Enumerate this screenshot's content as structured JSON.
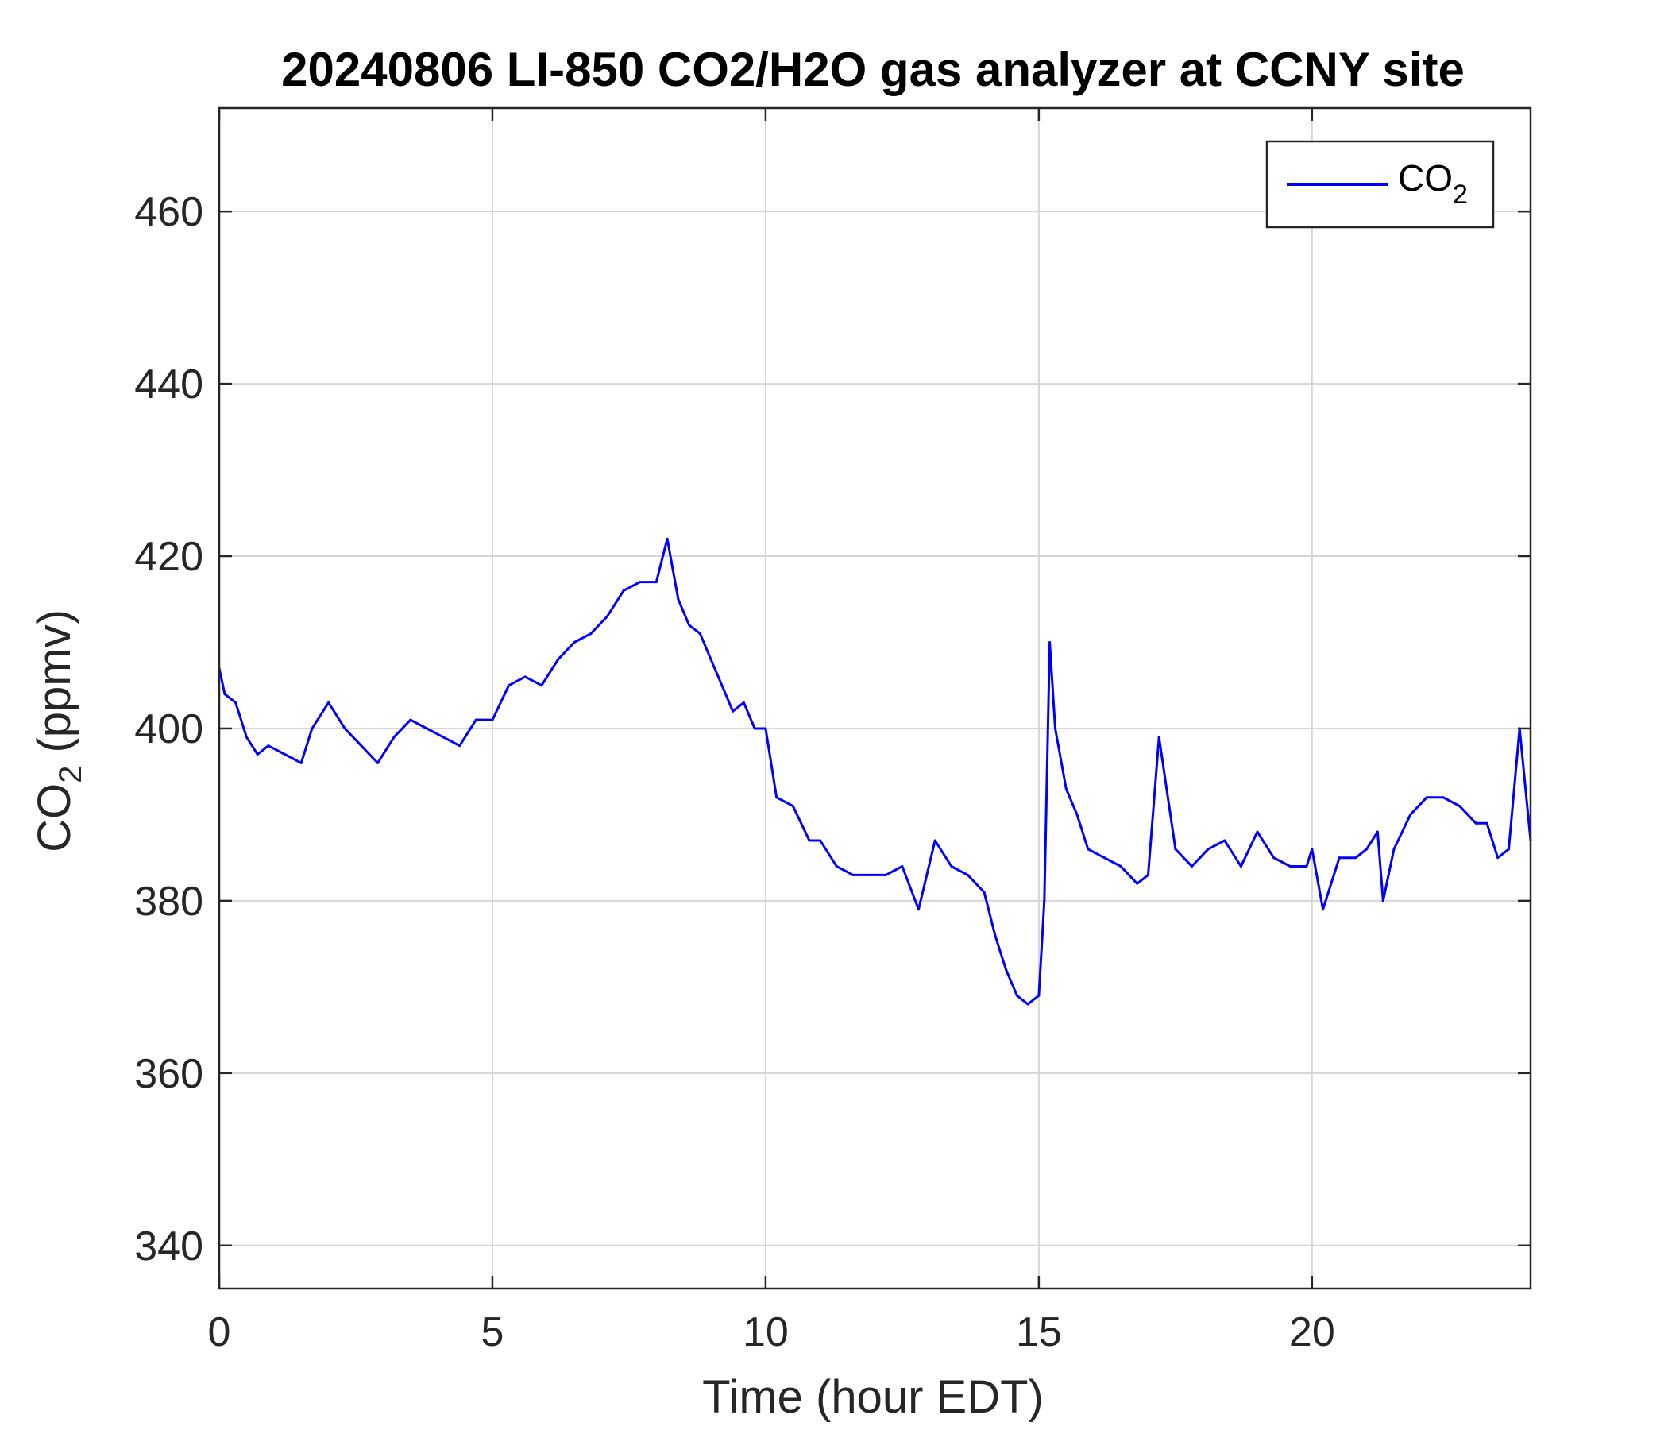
{
  "chart_data": {
    "type": "line",
    "title": "20240806 LI-850 CO2/H2O gas analyzer at CCNY site",
    "xlabel": "Time (hour EDT)",
    "ylabel": {
      "base": "CO",
      "sub": "2",
      "rest": " (ppmv)"
    },
    "xlim": [
      0,
      24
    ],
    "ylim": [
      335,
      472
    ],
    "xticks": [
      0,
      5,
      10,
      15,
      20
    ],
    "yticks": [
      340,
      360,
      380,
      400,
      420,
      440,
      460
    ],
    "grid": true,
    "legend": {
      "position": "top-right",
      "label_base": "CO",
      "label_sub": "2"
    },
    "series": [
      {
        "name": "CO2",
        "color": "#0000ff",
        "x": [
          0,
          0.1,
          0.3,
          0.5,
          0.7,
          0.9,
          1.2,
          1.5,
          1.7,
          2.0,
          2.3,
          2.6,
          2.9,
          3.2,
          3.5,
          3.8,
          4.1,
          4.4,
          4.7,
          5.0,
          5.3,
          5.6,
          5.9,
          6.2,
          6.5,
          6.8,
          7.1,
          7.4,
          7.7,
          8.0,
          8.2,
          8.4,
          8.6,
          8.8,
          9.0,
          9.2,
          9.4,
          9.6,
          9.8,
          10.0,
          10.2,
          10.5,
          10.8,
          11.0,
          11.3,
          11.6,
          11.9,
          12.2,
          12.5,
          12.8,
          13.1,
          13.4,
          13.7,
          14.0,
          14.2,
          14.4,
          14.6,
          14.8,
          15.0,
          15.1,
          15.2,
          15.3,
          15.5,
          15.7,
          15.9,
          16.2,
          16.5,
          16.8,
          17.0,
          17.2,
          17.5,
          17.8,
          18.1,
          18.4,
          18.7,
          19.0,
          19.3,
          19.6,
          19.9,
          20.0,
          20.2,
          20.5,
          20.8,
          21.0,
          21.2,
          21.3,
          21.5,
          21.8,
          22.1,
          22.4,
          22.7,
          23.0,
          23.2,
          23.4,
          23.6,
          23.8,
          24.0
        ],
        "y": [
          407,
          404,
          403,
          399,
          397,
          398,
          397,
          396,
          400,
          403,
          400,
          398,
          396,
          399,
          401,
          400,
          399,
          398,
          401,
          401,
          405,
          406,
          405,
          408,
          410,
          411,
          413,
          416,
          417,
          417,
          422,
          415,
          412,
          411,
          408,
          405,
          402,
          403,
          400,
          400,
          392,
          391,
          387,
          387,
          384,
          383,
          383,
          383,
          384,
          379,
          387,
          384,
          383,
          381,
          376,
          372,
          369,
          368,
          369,
          380,
          410,
          400,
          393,
          390,
          386,
          385,
          384,
          382,
          383,
          399,
          386,
          384,
          386,
          387,
          384,
          388,
          385,
          384,
          384,
          386,
          379,
          385,
          385,
          386,
          388,
          380,
          386,
          390,
          392,
          392,
          391,
          389,
          389,
          385,
          386,
          400,
          387
        ]
      }
    ]
  }
}
